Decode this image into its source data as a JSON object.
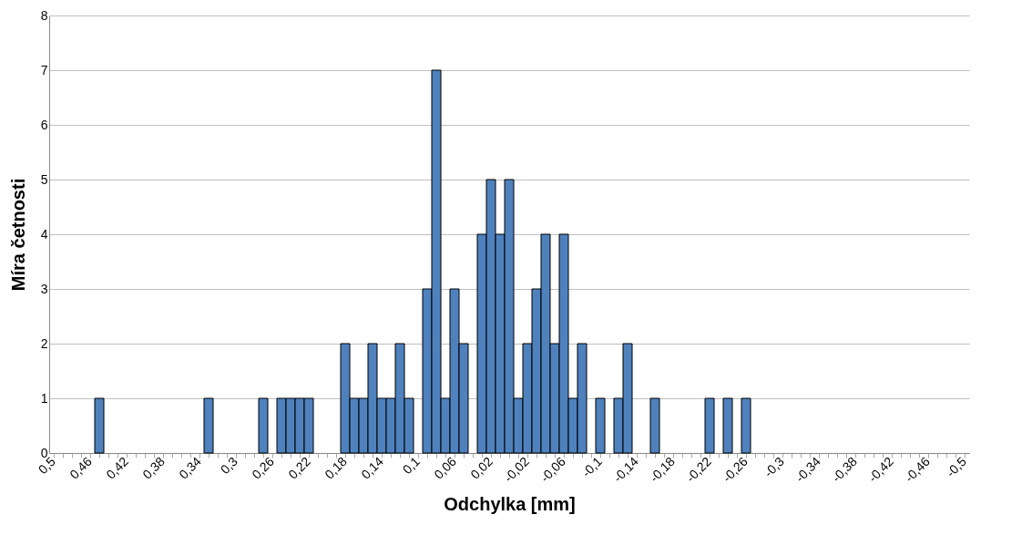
{
  "chart_data": {
    "type": "bar",
    "xlabel": "Odchylka [mm]",
    "ylabel": "Míra četnosti",
    "categories": [
      "0,5",
      null,
      null,
      null,
      "0,46",
      null,
      null,
      null,
      "0,42",
      null,
      null,
      null,
      "0,38",
      null,
      null,
      null,
      "0,34",
      null,
      null,
      null,
      "0,3",
      null,
      null,
      null,
      "0,26",
      null,
      null,
      null,
      "0,22",
      null,
      null,
      null,
      "0,18",
      null,
      null,
      null,
      "0,14",
      null,
      null,
      null,
      "0,1",
      null,
      null,
      null,
      "0,06",
      null,
      null,
      null,
      "0,02",
      null,
      null,
      null,
      "-0,02",
      null,
      null,
      null,
      "-0,06",
      null,
      null,
      null,
      "-0,1",
      null,
      null,
      null,
      "-0,14",
      null,
      null,
      null,
      "-0,18",
      null,
      null,
      null,
      "-0,22",
      null,
      null,
      null,
      "-0,26",
      null,
      null,
      null,
      "-0,3",
      null,
      null,
      null,
      "-0,34",
      null,
      null,
      null,
      "-0,38",
      null,
      null,
      null,
      "-0,42",
      null,
      null,
      null,
      "-0,46",
      null,
      null,
      null,
      "-0,5"
    ],
    "values": [
      0,
      0,
      0,
      0,
      0,
      1,
      0,
      0,
      0,
      0,
      0,
      0,
      0,
      0,
      0,
      0,
      0,
      1,
      0,
      0,
      0,
      0,
      0,
      1,
      0,
      1,
      1,
      1,
      1,
      0,
      0,
      0,
      2,
      1,
      1,
      2,
      1,
      1,
      2,
      1,
      0,
      3,
      7,
      1,
      3,
      2,
      0,
      4,
      5,
      4,
      5,
      1,
      2,
      3,
      4,
      2,
      4,
      1,
      2,
      0,
      1,
      0,
      1,
      2,
      0,
      0,
      1,
      0,
      0,
      0,
      0,
      0,
      1,
      0,
      1,
      0,
      1,
      0,
      0,
      0,
      0,
      0,
      0,
      0,
      0,
      0,
      0,
      0,
      0,
      0,
      0,
      0,
      0,
      0,
      0,
      0,
      0,
      0,
      0,
      0,
      0
    ],
    "color": "#4f81bd",
    "ylim": [
      0,
      8
    ],
    "yticks": [
      0,
      1,
      2,
      3,
      4,
      5,
      6,
      7,
      8
    ],
    "grid": "y"
  }
}
